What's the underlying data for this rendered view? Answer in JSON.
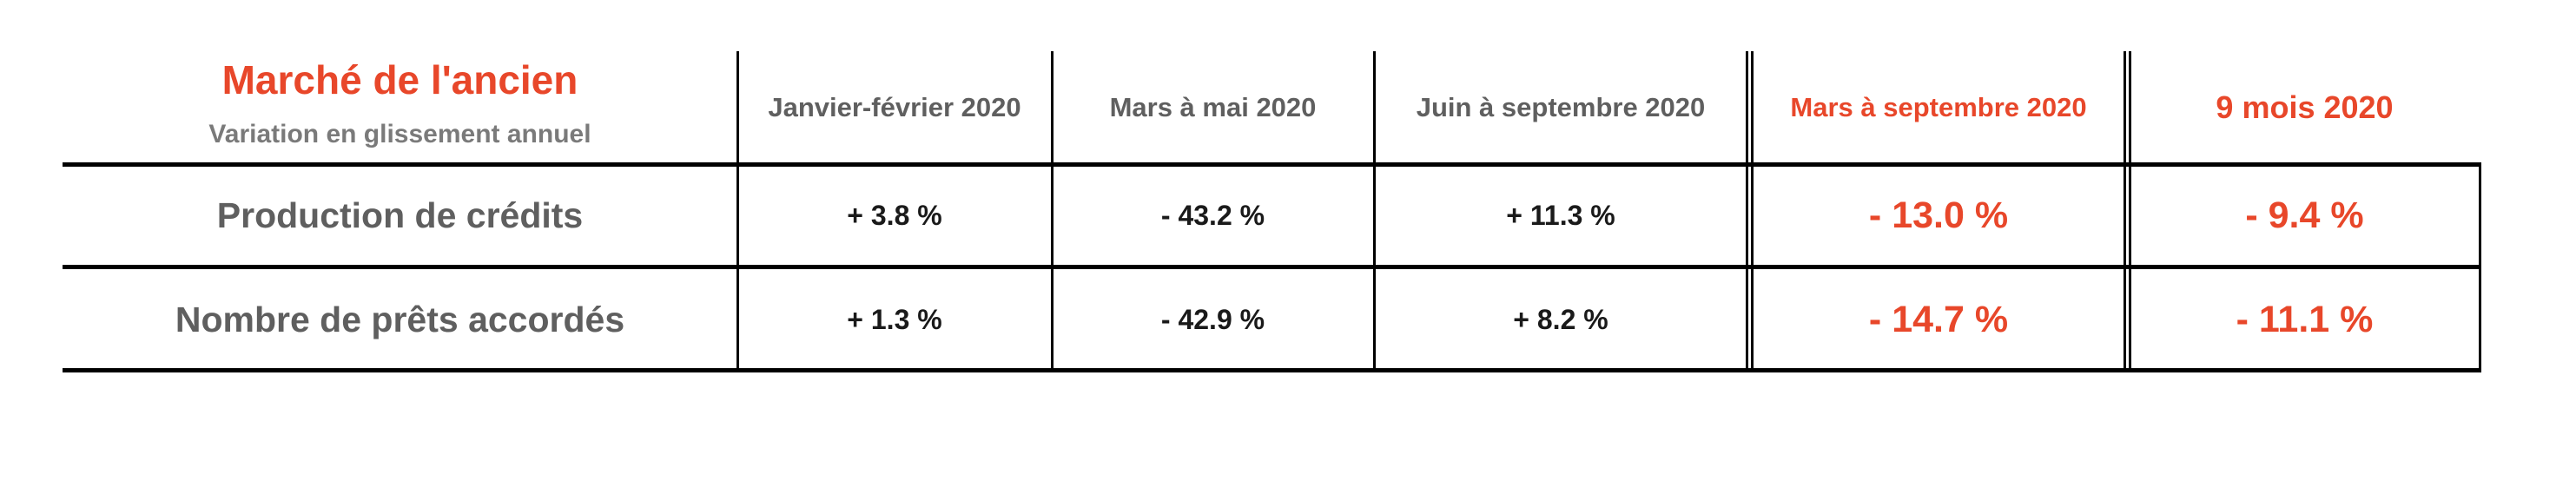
{
  "title": "Marché de l'ancien",
  "subtitle": "Variation en glissement annuel",
  "columns": [
    "Janvier-février 2020",
    "Mars à mai 2020",
    "Juin à septembre 2020",
    "Mars à septembre 2020",
    "9 mois 2020"
  ],
  "rows": [
    {
      "label": "Production de crédits",
      "values": [
        "+ 3.8 %",
        "- 43.2 %",
        "+ 11.3 %",
        "- 13.0 %",
        "- 9.4 %"
      ]
    },
    {
      "label": "Nombre de prêts accordés",
      "values": [
        "+ 1.3 %",
        "- 42.9 %",
        "+ 8.2 %",
        "- 14.7 %",
        "- 11.1 %"
      ]
    }
  ],
  "colors": {
    "accent": "#e8472a",
    "label_gray": "#5f5f5f",
    "value_dark": "#1a1a1a"
  }
}
